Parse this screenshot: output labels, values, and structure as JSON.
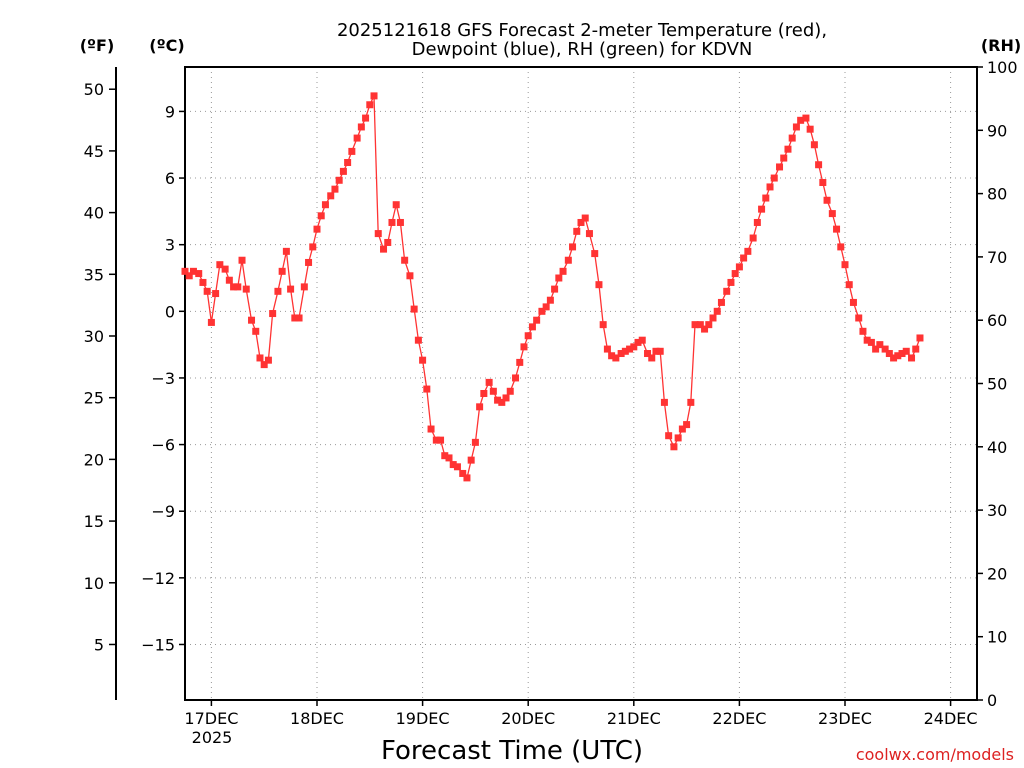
{
  "chart_data": {
    "type": "line",
    "title_line1": "2025121618 GFS Forecast 2-meter Temperature (red),",
    "title_line2": "Dewpoint (blue), RH (green) for KDVN",
    "xlabel": "Forecast Time (UTC)",
    "credit": "coolwx.com/models",
    "unit_f": "(ºF)",
    "unit_c": "(ºC)",
    "unit_rh": "(RH)",
    "x_unit": "days since 2025-12-16 18Z",
    "x_range": [
      0.75,
      8.25
    ],
    "c_range": [
      -17.5,
      11.0
    ],
    "rh_range": [
      0,
      100
    ],
    "x_ticks": [
      {
        "x": 1,
        "label": "17DEC"
      },
      {
        "x": 2,
        "label": "18DEC"
      },
      {
        "x": 3,
        "label": "19DEC"
      },
      {
        "x": 4,
        "label": "20DEC"
      },
      {
        "x": 5,
        "label": "21DEC"
      },
      {
        "x": 6,
        "label": "22DEC"
      },
      {
        "x": 7,
        "label": "23DEC"
      },
      {
        "x": 8,
        "label": "24DEC"
      }
    ],
    "x_sublabel": "2025",
    "c_ticks": [
      9,
      6,
      3,
      0,
      -3,
      -6,
      -9,
      -12,
      -15
    ],
    "c_tick_labels": [
      "9",
      "6",
      "3",
      "0",
      "−3",
      "−6",
      "−9",
      "−12",
      "−15"
    ],
    "f_ticks": [
      50,
      45,
      40,
      35,
      30,
      25,
      20,
      15,
      10,
      5
    ],
    "rh_ticks": [
      100,
      90,
      80,
      70,
      60,
      50,
      40,
      30,
      20,
      10,
      0
    ],
    "colors": {
      "temperature": "#ff3333",
      "dewpoint": "#3333dd",
      "rh": "#22cc22",
      "credit": "#dd2222"
    },
    "series": [
      {
        "name": "Temperature",
        "unit": "C",
        "marker": "square",
        "points": [
          [
            0.75,
            1.8
          ],
          [
            0.79,
            1.6
          ],
          [
            0.83,
            1.8
          ],
          [
            0.88,
            1.7
          ],
          [
            0.92,
            1.3
          ],
          [
            0.96,
            0.9
          ],
          [
            1.0,
            -0.5
          ],
          [
            1.04,
            0.8
          ],
          [
            1.08,
            2.1
          ],
          [
            1.13,
            1.9
          ],
          [
            1.17,
            1.4
          ],
          [
            1.21,
            1.1
          ],
          [
            1.25,
            1.1
          ],
          [
            1.29,
            2.3
          ],
          [
            1.33,
            1.0
          ],
          [
            1.38,
            -0.4
          ],
          [
            1.42,
            -0.9
          ],
          [
            1.46,
            -2.1
          ],
          [
            1.5,
            -2.4
          ],
          [
            1.54,
            -2.2
          ],
          [
            1.58,
            -0.1
          ],
          [
            1.63,
            0.9
          ],
          [
            1.67,
            1.8
          ],
          [
            1.71,
            2.7
          ],
          [
            1.75,
            1.0
          ],
          [
            1.79,
            -0.3
          ],
          [
            1.83,
            -0.3
          ],
          [
            1.88,
            1.1
          ],
          [
            1.92,
            2.2
          ],
          [
            1.96,
            2.9
          ],
          [
            2.0,
            3.7
          ],
          [
            2.04,
            4.3
          ],
          [
            2.08,
            4.8
          ],
          [
            2.13,
            5.2
          ],
          [
            2.17,
            5.5
          ],
          [
            2.21,
            5.9
          ],
          [
            2.25,
            6.3
          ],
          [
            2.29,
            6.7
          ],
          [
            2.33,
            7.2
          ],
          [
            2.38,
            7.8
          ],
          [
            2.42,
            8.3
          ],
          [
            2.46,
            8.7
          ],
          [
            2.5,
            9.3
          ],
          [
            2.54,
            9.7
          ],
          [
            2.58,
            3.5
          ],
          [
            2.63,
            2.8
          ],
          [
            2.67,
            3.1
          ],
          [
            2.71,
            4.0
          ],
          [
            2.75,
            4.8
          ],
          [
            2.79,
            4.0
          ],
          [
            2.83,
            2.3
          ],
          [
            2.88,
            1.6
          ],
          [
            2.92,
            0.1
          ],
          [
            2.96,
            -1.3
          ],
          [
            3.0,
            -2.2
          ],
          [
            3.04,
            -3.5
          ],
          [
            3.08,
            -5.3
          ],
          [
            3.13,
            -5.8
          ],
          [
            3.17,
            -5.8
          ],
          [
            3.21,
            -6.5
          ],
          [
            3.25,
            -6.6
          ],
          [
            3.29,
            -6.9
          ],
          [
            3.33,
            -7.0
          ],
          [
            3.38,
            -7.3
          ],
          [
            3.42,
            -7.5
          ],
          [
            3.46,
            -6.7
          ],
          [
            3.5,
            -5.9
          ],
          [
            3.54,
            -4.3
          ],
          [
            3.58,
            -3.7
          ],
          [
            3.63,
            -3.2
          ],
          [
            3.67,
            -3.6
          ],
          [
            3.71,
            -4.0
          ],
          [
            3.75,
            -4.1
          ],
          [
            3.79,
            -3.9
          ],
          [
            3.83,
            -3.6
          ],
          [
            3.88,
            -3.0
          ],
          [
            3.92,
            -2.3
          ],
          [
            3.96,
            -1.6
          ],
          [
            4.0,
            -1.1
          ],
          [
            4.04,
            -0.7
          ],
          [
            4.08,
            -0.4
          ],
          [
            4.13,
            0.0
          ],
          [
            4.17,
            0.2
          ],
          [
            4.21,
            0.5
          ],
          [
            4.25,
            1.0
          ],
          [
            4.29,
            1.5
          ],
          [
            4.33,
            1.8
          ],
          [
            4.38,
            2.3
          ],
          [
            4.42,
            2.9
          ],
          [
            4.46,
            3.6
          ],
          [
            4.5,
            4.0
          ],
          [
            4.54,
            4.2
          ],
          [
            4.58,
            3.5
          ],
          [
            4.63,
            2.6
          ],
          [
            4.67,
            1.2
          ],
          [
            4.71,
            -0.6
          ],
          [
            4.75,
            -1.7
          ],
          [
            4.79,
            -2.0
          ],
          [
            4.83,
            -2.1
          ],
          [
            4.88,
            -1.9
          ],
          [
            4.92,
            -1.8
          ],
          [
            4.96,
            -1.7
          ],
          [
            5.0,
            -1.6
          ],
          [
            5.04,
            -1.4
          ],
          [
            5.08,
            -1.3
          ],
          [
            5.13,
            -1.9
          ],
          [
            5.17,
            -2.1
          ],
          [
            5.21,
            -1.8
          ],
          [
            5.25,
            -1.8
          ],
          [
            5.29,
            -4.1
          ],
          [
            5.33,
            -5.6
          ],
          [
            5.38,
            -6.1
          ],
          [
            5.42,
            -5.7
          ],
          [
            5.46,
            -5.3
          ],
          [
            5.5,
            -5.1
          ],
          [
            5.54,
            -4.1
          ],
          [
            5.58,
            -0.6
          ],
          [
            5.63,
            -0.6
          ],
          [
            5.67,
            -0.8
          ],
          [
            5.71,
            -0.6
          ],
          [
            5.75,
            -0.3
          ],
          [
            5.79,
            0.0
          ],
          [
            5.83,
            0.4
          ],
          [
            5.88,
            0.9
          ],
          [
            5.92,
            1.3
          ],
          [
            5.96,
            1.7
          ],
          [
            6.0,
            2.0
          ],
          [
            6.04,
            2.4
          ],
          [
            6.08,
            2.7
          ],
          [
            6.13,
            3.3
          ],
          [
            6.17,
            4.0
          ],
          [
            6.21,
            4.6
          ],
          [
            6.25,
            5.1
          ],
          [
            6.29,
            5.6
          ],
          [
            6.33,
            6.0
          ],
          [
            6.38,
            6.5
          ],
          [
            6.42,
            6.9
          ],
          [
            6.46,
            7.3
          ],
          [
            6.5,
            7.8
          ],
          [
            6.54,
            8.3
          ],
          [
            6.58,
            8.6
          ],
          [
            6.63,
            8.7
          ],
          [
            6.67,
            8.2
          ],
          [
            6.71,
            7.5
          ],
          [
            6.75,
            6.6
          ],
          [
            6.79,
            5.8
          ],
          [
            6.83,
            5.0
          ],
          [
            6.88,
            4.4
          ],
          [
            6.92,
            3.7
          ],
          [
            6.96,
            2.9
          ],
          [
            7.0,
            2.1
          ],
          [
            7.04,
            1.2
          ],
          [
            7.08,
            0.4
          ],
          [
            7.13,
            -0.3
          ],
          [
            7.17,
            -0.9
          ],
          [
            7.21,
            -1.3
          ],
          [
            7.25,
            -1.4
          ],
          [
            7.29,
            -1.7
          ],
          [
            7.33,
            -1.5
          ],
          [
            7.38,
            -1.7
          ],
          [
            7.42,
            -1.9
          ],
          [
            7.46,
            -2.1
          ],
          [
            7.5,
            -2.0
          ],
          [
            7.54,
            -1.9
          ],
          [
            7.58,
            -1.8
          ],
          [
            7.63,
            -2.1
          ],
          [
            7.67,
            -1.7
          ],
          [
            7.71,
            -1.2
          ]
        ]
      }
    ]
  }
}
